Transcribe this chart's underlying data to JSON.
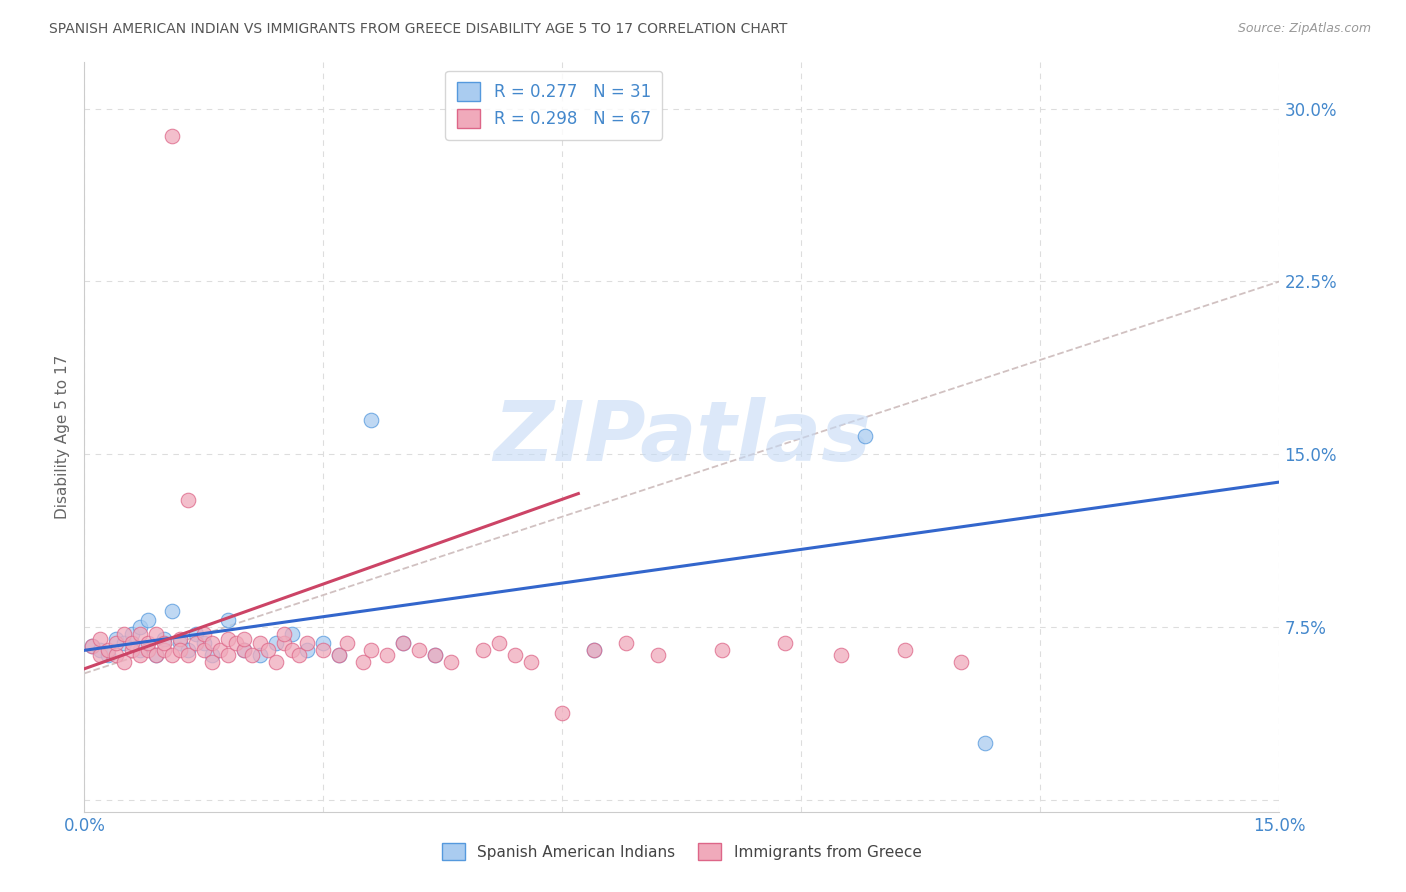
{
  "title": "SPANISH AMERICAN INDIAN VS IMMIGRANTS FROM GREECE DISABILITY AGE 5 TO 17 CORRELATION CHART",
  "source": "Source: ZipAtlas.com",
  "ylabel": "Disability Age 5 to 17",
  "xlim": [
    0.0,
    0.15
  ],
  "ylim": [
    -0.005,
    0.32
  ],
  "xticks": [
    0.0,
    0.03,
    0.06,
    0.09,
    0.12,
    0.15
  ],
  "yticks": [
    0.0,
    0.075,
    0.15,
    0.225,
    0.3
  ],
  "blue_R": 0.277,
  "blue_N": 31,
  "pink_R": 0.298,
  "pink_N": 67,
  "blue_color": "#aaccf0",
  "pink_color": "#f0aabb",
  "blue_edge_color": "#5599dd",
  "pink_edge_color": "#dd6688",
  "blue_line_color": "#3366cc",
  "pink_line_color": "#cc4466",
  "gray_dash_color": "#ccbbbb",
  "watermark_color": "#c5daf5",
  "grid_color": "#dddddd",
  "background_color": "#ffffff",
  "title_color": "#555555",
  "source_color": "#999999",
  "tick_color": "#4488cc",
  "axis_label_color": "#666666",
  "blue_line_x": [
    0.0,
    0.15
  ],
  "blue_line_y": [
    0.065,
    0.138
  ],
  "pink_line_x": [
    0.0,
    0.062
  ],
  "pink_line_y": [
    0.057,
    0.133
  ],
  "gray_line_x": [
    0.0,
    0.15
  ],
  "gray_line_y": [
    0.055,
    0.225
  ],
  "blue_x": [
    0.001,
    0.002,
    0.003,
    0.004,
    0.005,
    0.006,
    0.007,
    0.007,
    0.008,
    0.009,
    0.01,
    0.011,
    0.012,
    0.013,
    0.014,
    0.015,
    0.016,
    0.018,
    0.02,
    0.022,
    0.024,
    0.026,
    0.028,
    0.03,
    0.032,
    0.036,
    0.04,
    0.044,
    0.064,
    0.098,
    0.113
  ],
  "blue_y": [
    0.067,
    0.065,
    0.063,
    0.07,
    0.068,
    0.072,
    0.065,
    0.075,
    0.078,
    0.063,
    0.07,
    0.082,
    0.068,
    0.065,
    0.072,
    0.068,
    0.063,
    0.078,
    0.065,
    0.063,
    0.068,
    0.072,
    0.065,
    0.068,
    0.063,
    0.165,
    0.068,
    0.063,
    0.065,
    0.158,
    0.025
  ],
  "pink_x": [
    0.001,
    0.002,
    0.002,
    0.003,
    0.004,
    0.004,
    0.005,
    0.005,
    0.006,
    0.006,
    0.007,
    0.007,
    0.008,
    0.008,
    0.009,
    0.009,
    0.01,
    0.01,
    0.011,
    0.011,
    0.012,
    0.012,
    0.013,
    0.013,
    0.014,
    0.015,
    0.015,
    0.016,
    0.016,
    0.017,
    0.018,
    0.018,
    0.019,
    0.02,
    0.02,
    0.021,
    0.022,
    0.023,
    0.024,
    0.025,
    0.025,
    0.026,
    0.027,
    0.028,
    0.03,
    0.032,
    0.033,
    0.035,
    0.036,
    0.038,
    0.04,
    0.042,
    0.044,
    0.046,
    0.05,
    0.052,
    0.054,
    0.056,
    0.06,
    0.064,
    0.068,
    0.072,
    0.08,
    0.088,
    0.095,
    0.103,
    0.11
  ],
  "pink_y": [
    0.067,
    0.063,
    0.07,
    0.065,
    0.063,
    0.068,
    0.06,
    0.072,
    0.065,
    0.068,
    0.063,
    0.072,
    0.065,
    0.068,
    0.063,
    0.072,
    0.065,
    0.068,
    0.063,
    0.288,
    0.07,
    0.065,
    0.13,
    0.063,
    0.068,
    0.065,
    0.072,
    0.06,
    0.068,
    0.065,
    0.07,
    0.063,
    0.068,
    0.065,
    0.07,
    0.063,
    0.068,
    0.065,
    0.06,
    0.068,
    0.072,
    0.065,
    0.063,
    0.068,
    0.065,
    0.063,
    0.068,
    0.06,
    0.065,
    0.063,
    0.068,
    0.065,
    0.063,
    0.06,
    0.065,
    0.068,
    0.063,
    0.06,
    0.038,
    0.065,
    0.068,
    0.063,
    0.065,
    0.068,
    0.063,
    0.065,
    0.06
  ]
}
